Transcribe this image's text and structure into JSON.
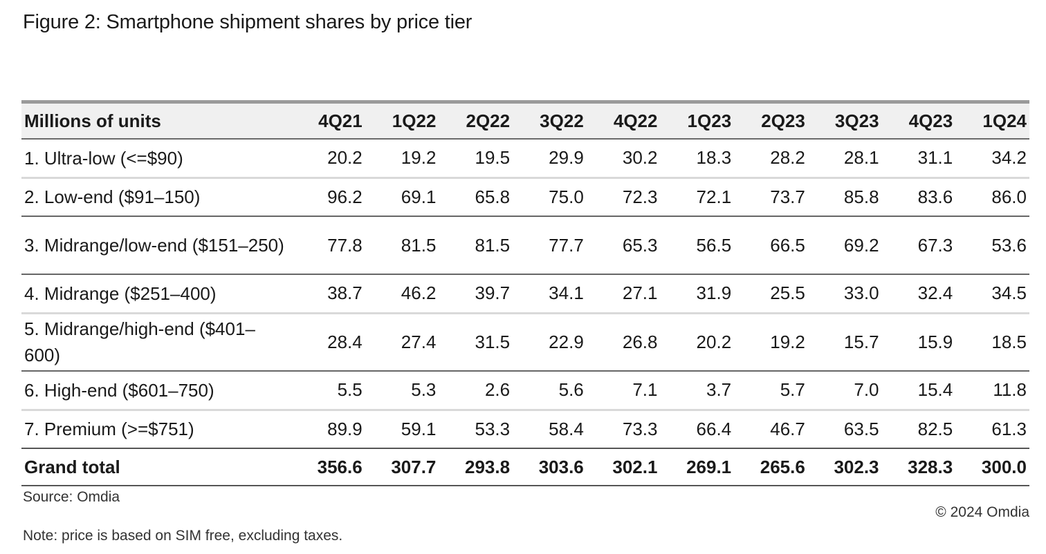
{
  "title": "Figure 2: Smartphone shipment shares by price tier",
  "source": "Source: Omdia",
  "copyright": "© 2024 Omdia",
  "note": "Note: price is based on SIM free, excluding taxes.",
  "chart_data": {
    "type": "table",
    "title": "Figure 2: Smartphone shipment shares by price tier",
    "header_label": "Millions of units",
    "columns": [
      "4Q21",
      "1Q22",
      "2Q22",
      "3Q22",
      "4Q22",
      "1Q23",
      "2Q23",
      "3Q23",
      "4Q23",
      "1Q24"
    ],
    "rows": [
      {
        "label": "1. Ultra-low (<=$90)",
        "values": [
          "20.2",
          "19.2",
          "19.5",
          "29.9",
          "30.2",
          "18.3",
          "28.2",
          "28.1",
          "31.1",
          "34.2"
        ]
      },
      {
        "label": "2. Low-end ($91–150)",
        "values": [
          "96.2",
          "69.1",
          "65.8",
          "75.0",
          "72.3",
          "72.1",
          "73.7",
          "85.8",
          "83.6",
          "86.0"
        ]
      },
      {
        "label": "3. Midrange/low-end ($151–250)",
        "values": [
          "77.8",
          "81.5",
          "81.5",
          "77.7",
          "65.3",
          "56.5",
          "66.5",
          "69.2",
          "67.3",
          "53.6"
        ]
      },
      {
        "label": "4. Midrange ($251–400)",
        "values": [
          "38.7",
          "46.2",
          "39.7",
          "34.1",
          "27.1",
          "31.9",
          "25.5",
          "33.0",
          "32.4",
          "34.5"
        ]
      },
      {
        "label": "5. Midrange/high-end ($401–600)",
        "values": [
          "28.4",
          "27.4",
          "31.5",
          "22.9",
          "26.8",
          "20.2",
          "19.2",
          "15.7",
          "15.9",
          "18.5"
        ]
      },
      {
        "label": "6. High-end ($601–750)",
        "values": [
          "5.5",
          "5.3",
          "2.6",
          "5.6",
          "7.1",
          "3.7",
          "5.7",
          "7.0",
          "15.4",
          "11.8"
        ]
      },
      {
        "label": "7. Premium (>=$751)",
        "values": [
          "89.9",
          "59.1",
          "53.3",
          "58.4",
          "73.3",
          "66.4",
          "46.7",
          "63.5",
          "82.5",
          "61.3"
        ]
      }
    ],
    "total": {
      "label": "Grand total",
      "values": [
        "356.6",
        "307.7",
        "293.8",
        "303.6",
        "302.1",
        "269.1",
        "265.6",
        "302.3",
        "328.3",
        "300.0"
      ]
    }
  }
}
